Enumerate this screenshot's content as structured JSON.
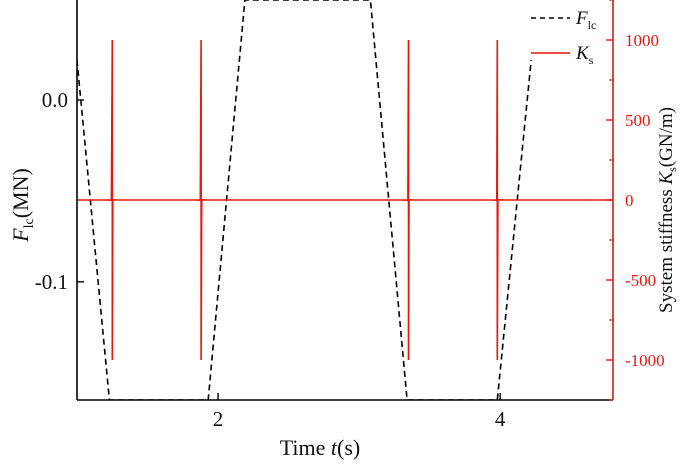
{
  "chart_data": {
    "type": "line",
    "xlabel_prefix": "Time ",
    "xlabel_var": "t",
    "xlabel_suffix": "(s)",
    "ylabel_left_var": "F",
    "ylabel_left_sub": "lc",
    "ylabel_left_unit": "(MN)",
    "ylabel_right_prefix": "System stiffness ",
    "ylabel_right_var": "K",
    "ylabel_right_sub": "s",
    "ylabel_right_unit": "(GN/m)",
    "xlim": [
      1.0,
      4.8
    ],
    "ylim_left": [
      -0.165,
      0.055
    ],
    "ylim_right": [
      -1250,
      1250
    ],
    "x_ticks": [
      2,
      4
    ],
    "x_tick_labels": [
      "2",
      "4"
    ],
    "y_left_ticks": [
      0.0,
      -0.1
    ],
    "y_left_tick_labels": [
      "0.0",
      "-0.1"
    ],
    "y_right_ticks": [
      1000,
      500,
      0,
      -500,
      -1000
    ],
    "y_right_tick_labels": [
      "1000",
      "500",
      "0",
      "-500",
      "-1000"
    ],
    "grid": false,
    "legend_position": "top-right",
    "series": [
      {
        "name_var": "F",
        "name_sub": "lc",
        "axis": "left",
        "style": "dashed",
        "color": "#000000",
        "points": [
          [
            1.0,
            0.022
          ],
          [
            1.23,
            -0.165
          ],
          [
            1.93,
            -0.165
          ],
          [
            2.19,
            0.055
          ],
          [
            3.08,
            0.055
          ],
          [
            3.34,
            -0.165
          ],
          [
            3.98,
            -0.165
          ],
          [
            4.22,
            0.022
          ]
        ]
      },
      {
        "name_var": "K",
        "name_sub": "s",
        "axis": "right",
        "style": "solid",
        "color": "#e8160c",
        "points": []
      }
    ],
    "stiffness_baseline": 0,
    "stiffness_resonances": [
      1.25,
      1.88,
      3.35,
      3.98
    ],
    "stiffness_peak_max": 1000,
    "stiffness_peak_min": -1000
  }
}
